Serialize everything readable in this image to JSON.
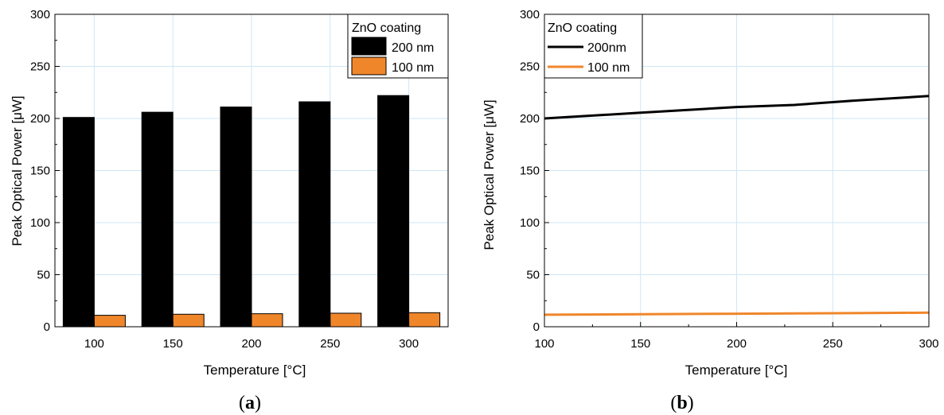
{
  "chart_data": [
    {
      "type": "bar",
      "panel_label": "a",
      "xlabel": "Temperature [°C]",
      "ylabel": "Peak Optical Power [μW]",
      "ylim": [
        0,
        300
      ],
      "yticks": [
        "0",
        "50",
        "100",
        "150",
        "200",
        "250",
        "300"
      ],
      "categories": [
        "100",
        "150",
        "200",
        "250",
        "300"
      ],
      "legend": {
        "title": "ZnO coating",
        "placement": "top-right"
      },
      "grid": true,
      "series": [
        {
          "name": "200 nm",
          "color": "#000000",
          "values": [
            201,
            206,
            211,
            216,
            222
          ]
        },
        {
          "name": "100 nm",
          "color": "#f0862a",
          "values": [
            11,
            12,
            12.5,
            13,
            13.5
          ]
        }
      ]
    },
    {
      "type": "line",
      "panel_label": "b",
      "xlabel": "Temperature [°C]",
      "ylabel": "Peak Optical Power [μW]",
      "xlim": [
        100,
        300
      ],
      "ylim": [
        0,
        300
      ],
      "xticks": [
        "100",
        "150",
        "200",
        "250",
        "300"
      ],
      "yticks": [
        "0",
        "50",
        "100",
        "150",
        "200",
        "250",
        "300"
      ],
      "legend": {
        "title": "ZnO coating",
        "placement": "top-left"
      },
      "grid": true,
      "series": [
        {
          "name": "200nm",
          "color": "#000000",
          "x": [
            100,
            150,
            200,
            230,
            260,
            300
          ],
          "y": [
            200,
            205.5,
            211,
            213,
            217,
            221.5
          ]
        },
        {
          "name": "100 nm",
          "color": "#f0862a",
          "x": [
            100,
            150,
            200,
            250,
            300
          ],
          "y": [
            11.5,
            12,
            12.5,
            13,
            13.5
          ]
        }
      ]
    }
  ]
}
